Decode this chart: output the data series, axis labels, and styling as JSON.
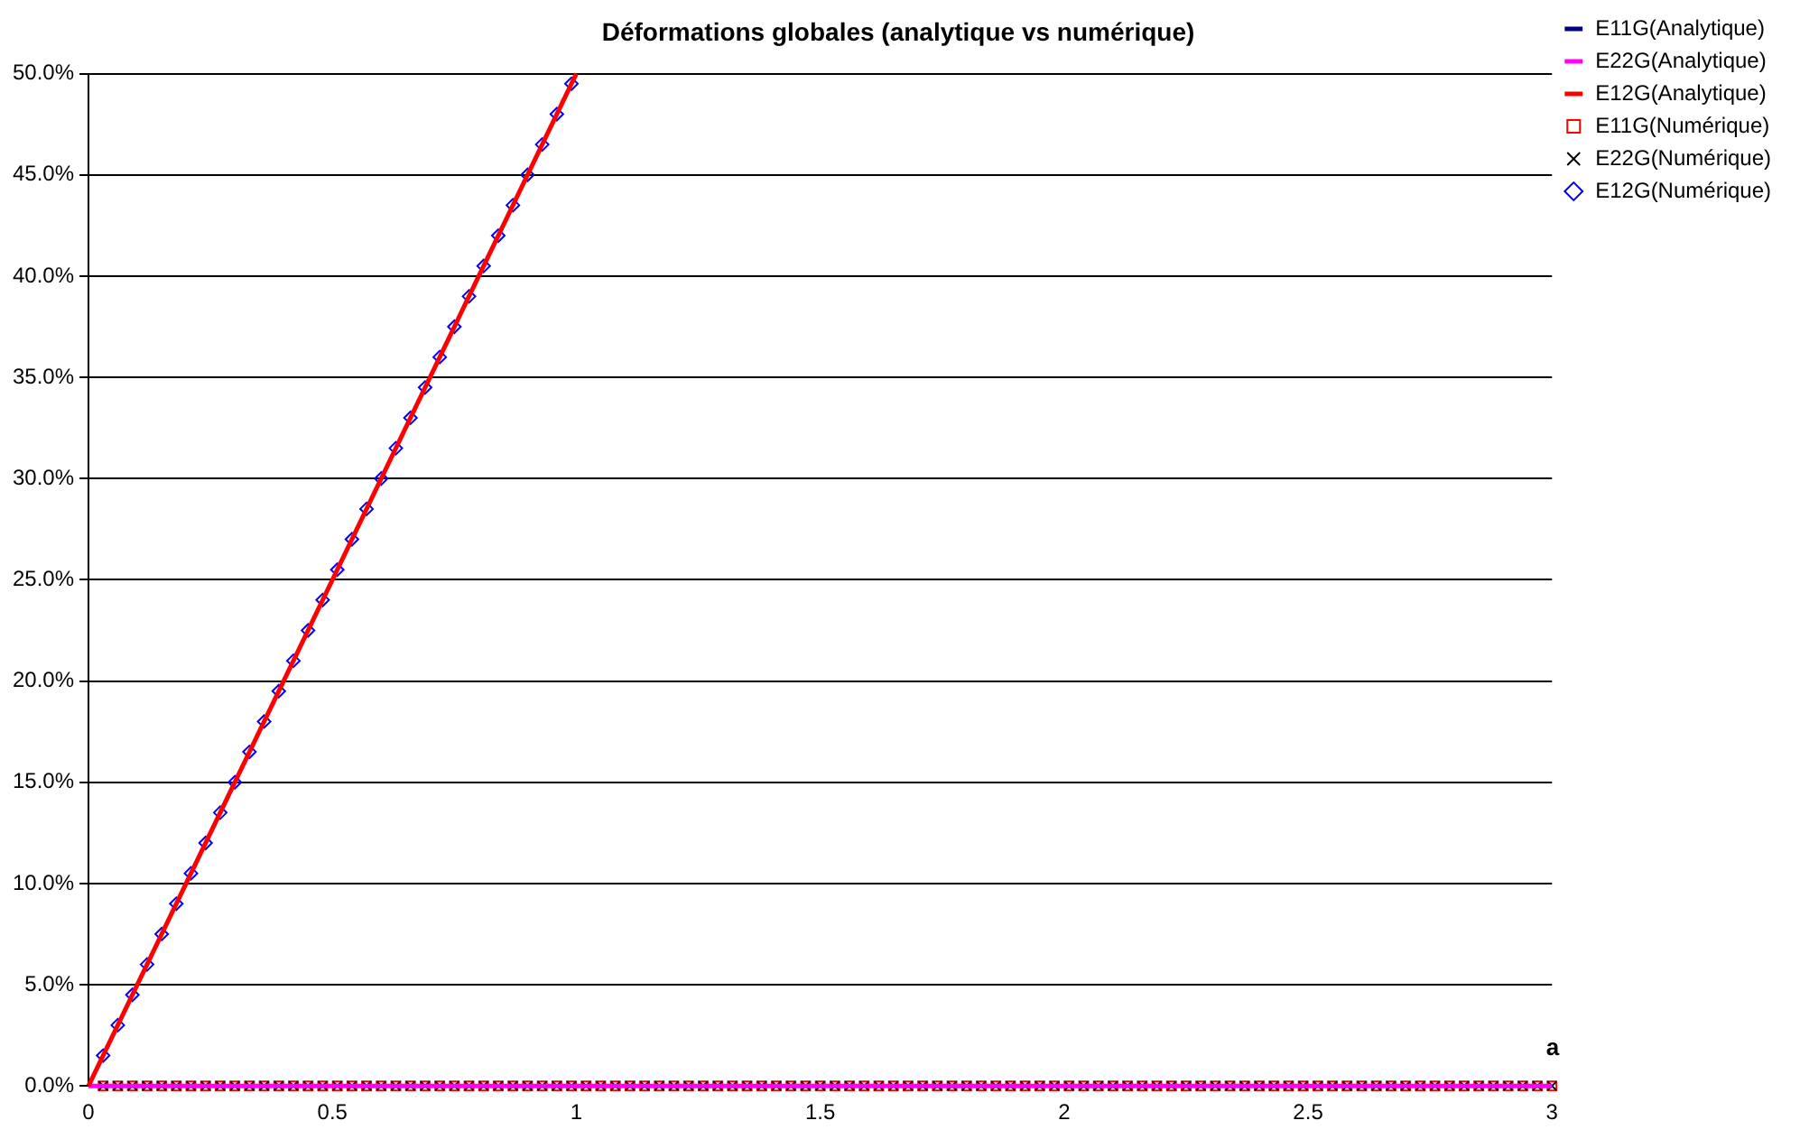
{
  "chart_data": {
    "type": "scatter",
    "title": "Déformations globales (analytique vs numérique)",
    "xlabel": "a",
    "xlim": [
      0,
      3
    ],
    "xticks": [
      0,
      0.5,
      1,
      1.5,
      2,
      2.5,
      3
    ],
    "ylim": [
      0,
      50
    ],
    "yticks": [
      {
        "value": 0,
        "label": "0.0%"
      },
      {
        "value": 5,
        "label": "5.0%"
      },
      {
        "value": 10,
        "label": "10.0%"
      },
      {
        "value": 15,
        "label": "15.0%"
      },
      {
        "value": 20,
        "label": "20.0%"
      },
      {
        "value": 25,
        "label": "25.0%"
      },
      {
        "value": 30,
        "label": "30.0%"
      },
      {
        "value": 35,
        "label": "35.0%"
      },
      {
        "value": 40,
        "label": "40.0%"
      },
      {
        "value": 45,
        "label": "45.0%"
      },
      {
        "value": 50,
        "label": "50.0%"
      }
    ],
    "grid": "y",
    "legend": "top right",
    "series": [
      {
        "name": "E11G(Analytique)",
        "type": "line",
        "marker": "none",
        "color": "#000080"
      },
      {
        "name": "E22G(Analytique)",
        "type": "line",
        "marker": "none",
        "color": "#ff00ff",
        "x": [
          0,
          3
        ],
        "values": [
          0,
          0
        ]
      },
      {
        "name": "E12G(Analytique)",
        "type": "line",
        "marker": "none",
        "color": "#ff0000",
        "x": [
          0,
          1
        ],
        "values": [
          0,
          50
        ]
      },
      {
        "name": "E11G(Numérique)",
        "type": "scatter",
        "marker": "square",
        "color": "#ff0000",
        "x": [
          0.03,
          0.06,
          0.09,
          0.12,
          0.15,
          0.18,
          0.21,
          0.24,
          0.27,
          0.3,
          0.33,
          0.36,
          0.39,
          0.42,
          0.45,
          0.48,
          0.51,
          0.54,
          0.57,
          0.6,
          0.63,
          0.66,
          0.69,
          0.72,
          0.75,
          0.78,
          0.81,
          0.84,
          0.87,
          0.9,
          0.93,
          0.96,
          0.99,
          1.02,
          1.05,
          1.08,
          1.11,
          1.14,
          1.17,
          1.2,
          1.23,
          1.26,
          1.29,
          1.32,
          1.35,
          1.38,
          1.41,
          1.44,
          1.47,
          1.5,
          1.53,
          1.56,
          1.59,
          1.62,
          1.65,
          1.68,
          1.71,
          1.74,
          1.77,
          1.8,
          1.83,
          1.86,
          1.89,
          1.92,
          1.95,
          1.98,
          2.01,
          2.04,
          2.07,
          2.1,
          2.13,
          2.16,
          2.19,
          2.22,
          2.25,
          2.28,
          2.31,
          2.34,
          2.37,
          2.4,
          2.43,
          2.46,
          2.49,
          2.52,
          2.55,
          2.58,
          2.61,
          2.64,
          2.67,
          2.7,
          2.73,
          2.76,
          2.79,
          2.82,
          2.85,
          2.88,
          2.91,
          2.94,
          2.97,
          3
        ],
        "values": [
          0,
          0,
          0,
          0,
          0,
          0,
          0,
          0,
          0,
          0,
          0,
          0,
          0,
          0,
          0,
          0,
          0,
          0,
          0,
          0,
          0,
          0,
          0,
          0,
          0,
          0,
          0,
          0,
          0,
          0,
          0,
          0,
          0,
          0,
          0,
          0,
          0,
          0,
          0,
          0,
          0,
          0,
          0,
          0,
          0,
          0,
          0,
          0,
          0,
          0,
          0,
          0,
          0,
          0,
          0,
          0,
          0,
          0,
          0,
          0,
          0,
          0,
          0,
          0,
          0,
          0,
          0,
          0,
          0,
          0,
          0,
          0,
          0,
          0,
          0,
          0,
          0,
          0,
          0,
          0,
          0,
          0,
          0,
          0,
          0,
          0,
          0,
          0,
          0,
          0,
          0,
          0,
          0,
          0,
          0,
          0,
          0,
          0,
          0,
          0
        ]
      },
      {
        "name": "E22G(Numérique)",
        "type": "scatter",
        "marker": "cross",
        "color": "#000000",
        "x": [
          0.03,
          0.06,
          0.09,
          0.12,
          0.15,
          0.18,
          0.21,
          0.24,
          0.27,
          0.3,
          0.33,
          0.36,
          0.39,
          0.42,
          0.45,
          0.48,
          0.51,
          0.54,
          0.57,
          0.6,
          0.63,
          0.66,
          0.69,
          0.72,
          0.75,
          0.78,
          0.81,
          0.84,
          0.87,
          0.9,
          0.93,
          0.96,
          0.99,
          1.02,
          1.05,
          1.08,
          1.11,
          1.14,
          1.17,
          1.2,
          1.23,
          1.26,
          1.29,
          1.32,
          1.35,
          1.38,
          1.41,
          1.44,
          1.47,
          1.5,
          1.53,
          1.56,
          1.59,
          1.62,
          1.65,
          1.68,
          1.71,
          1.74,
          1.77,
          1.8,
          1.83,
          1.86,
          1.89,
          1.92,
          1.95,
          1.98,
          2.01,
          2.04,
          2.07,
          2.1,
          2.13,
          2.16,
          2.19,
          2.22,
          2.25,
          2.28,
          2.31,
          2.34,
          2.37,
          2.4,
          2.43,
          2.46,
          2.49,
          2.52,
          2.55,
          2.58,
          2.61,
          2.64,
          2.67,
          2.7,
          2.73,
          2.76,
          2.79,
          2.82,
          2.85,
          2.88,
          2.91,
          2.94,
          2.97,
          3
        ],
        "values": [
          0,
          0,
          0,
          0,
          0,
          0,
          0,
          0,
          0,
          0,
          0,
          0,
          0,
          0,
          0,
          0,
          0,
          0,
          0,
          0,
          0,
          0,
          0,
          0,
          0,
          0,
          0,
          0,
          0,
          0,
          0,
          0,
          0,
          0,
          0,
          0,
          0,
          0,
          0,
          0,
          0,
          0,
          0,
          0,
          0,
          0,
          0,
          0,
          0,
          0,
          0,
          0,
          0,
          0,
          0,
          0,
          0,
          0,
          0,
          0,
          0,
          0,
          0,
          0,
          0,
          0,
          0,
          0,
          0,
          0,
          0,
          0,
          0,
          0,
          0,
          0,
          0,
          0,
          0,
          0,
          0,
          0,
          0,
          0,
          0,
          0,
          0,
          0,
          0,
          0,
          0,
          0,
          0,
          0,
          0,
          0,
          0,
          0,
          0,
          0
        ]
      },
      {
        "name": "E12G(Numérique)",
        "type": "scatter",
        "marker": "diamond",
        "color": "#0000ff",
        "x": [
          0.03,
          0.06,
          0.09,
          0.12,
          0.15,
          0.18,
          0.21,
          0.24,
          0.27,
          0.3,
          0.33,
          0.36,
          0.39,
          0.42,
          0.45,
          0.48,
          0.51,
          0.54,
          0.57,
          0.6,
          0.63,
          0.66,
          0.69,
          0.72,
          0.75,
          0.78,
          0.81,
          0.84,
          0.87,
          0.9,
          0.93,
          0.96,
          0.99
        ],
        "values": [
          1.5,
          3,
          4.5,
          6,
          7.5,
          9,
          10.5,
          12,
          13.5,
          15,
          16.5,
          18,
          19.5,
          21,
          22.5,
          24,
          25.5,
          27,
          28.5,
          30,
          31.5,
          33,
          34.5,
          36,
          37.5,
          39,
          40.5,
          42,
          43.5,
          45,
          46.5,
          48,
          49.5
        ]
      }
    ]
  }
}
